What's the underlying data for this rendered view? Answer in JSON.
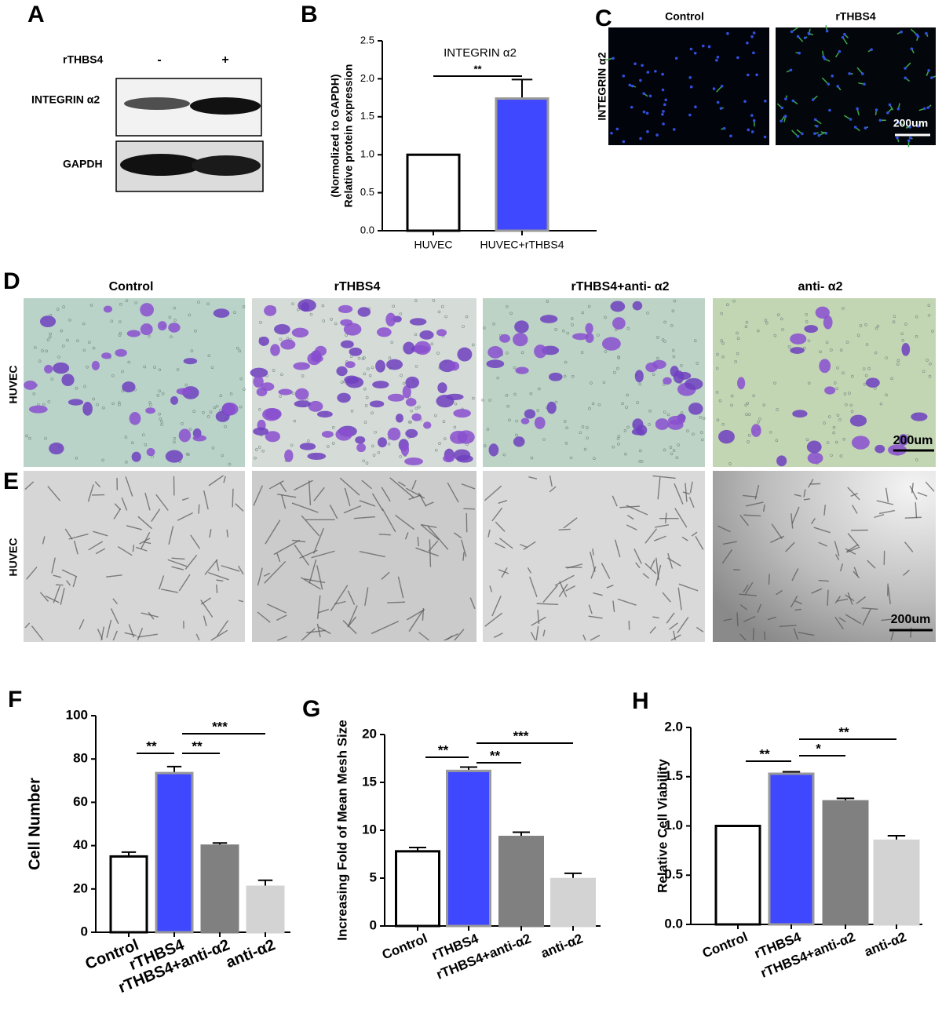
{
  "panel_labels": [
    "A",
    "B",
    "C",
    "D",
    "E",
    "F",
    "G",
    "H"
  ],
  "blot": {
    "treatment": "rTHBS4",
    "lanes": [
      "-",
      "+"
    ],
    "rows": [
      "INTEGRIN α2",
      "GAPDH"
    ]
  },
  "panel_c": {
    "columns": [
      "Control",
      "rTHBS4"
    ],
    "row": "INTEGRIN α2",
    "scale": "200um"
  },
  "panel_d": {
    "columns": [
      "Control",
      "rTHBS4",
      "rTHBS4+anti- α2",
      "anti- α2"
    ],
    "row": "HUVEC",
    "scale": "200um"
  },
  "panel_e": {
    "row": "HUVEC",
    "scale": "200um"
  },
  "chart_data": [
    {
      "type": "bar",
      "title": "INTEGRIN α2",
      "y_label": [
        "Relative protein expression",
        "(Normolized to GAPDH)"
      ],
      "categories": [
        "HUVEC",
        "HUVEC+rTHBS4"
      ],
      "values": [
        1.0,
        1.74
      ],
      "errors": [
        0,
        0.25
      ],
      "colors": [
        "#ffffff",
        "#3f48ff"
      ],
      "ylim": [
        0,
        2.5
      ],
      "yticks": [
        {
          "value": 0,
          "label": "0.0"
        },
        {
          "value": 0.5,
          "label": "0.5"
        },
        {
          "value": 1,
          "label": "1.0"
        },
        {
          "value": 1.5,
          "label": "1.5"
        },
        {
          "value": 2,
          "label": "2.0"
        },
        {
          "value": 2.5,
          "label": "2.5"
        }
      ],
      "significance": [
        {
          "between": [
            "HUVEC",
            "HUVEC+rTHBS4"
          ],
          "label": "**"
        }
      ]
    },
    {
      "type": "bar",
      "y_label": [
        "Cell Number"
      ],
      "categories": [
        "Control",
        "rTHBS4",
        "rTHBS4+anti-α2",
        "anti-α2"
      ],
      "values": [
        35,
        73.5,
        40,
        21
      ],
      "errors": [
        2,
        3,
        1.2,
        3
      ],
      "colors": [
        "#ffffff",
        "#3f48ff",
        "#808080",
        "#d3d3d3"
      ],
      "ylim": [
        0,
        100
      ],
      "yticks": [
        0,
        20,
        40,
        60,
        80,
        100
      ],
      "significance": [
        {
          "between": [
            "Control",
            "rTHBS4"
          ],
          "label": "**"
        },
        {
          "between": [
            "rTHBS4",
            "rTHBS4+anti-α2"
          ],
          "label": "**"
        },
        {
          "between": [
            "rTHBS4",
            "anti-α2"
          ],
          "label": "***"
        }
      ]
    },
    {
      "type": "bar",
      "y_label": [
        "Increasing Fold of Mean Mesh Size"
      ],
      "categories": [
        "Control",
        "rTHBS4",
        "rTHBS4+anti-α2",
        "anti-α2"
      ],
      "values": [
        7.8,
        16.2,
        9.3,
        4.9
      ],
      "errors": [
        0.4,
        0.4,
        0.5,
        0.6
      ],
      "colors": [
        "#ffffff",
        "#3f48ff",
        "#808080",
        "#d3d3d3"
      ],
      "ylim": [
        0,
        20
      ],
      "yticks": [
        0,
        5,
        10,
        15,
        20
      ],
      "significance": [
        {
          "between": [
            "Control",
            "rTHBS4"
          ],
          "label": "**"
        },
        {
          "between": [
            "rTHBS4",
            "rTHBS4+anti-α2"
          ],
          "label": "**"
        },
        {
          "between": [
            "rTHBS4",
            "anti-α2"
          ],
          "label": "***"
        }
      ]
    },
    {
      "type": "bar",
      "y_label": [
        "Relative Cell Viability"
      ],
      "categories": [
        "Control",
        "rTHBS4",
        "rTHBS4+anti-α2",
        "anti-α2"
      ],
      "values": [
        1.0,
        1.53,
        1.25,
        0.85
      ],
      "errors": [
        0,
        0.02,
        0.03,
        0.05
      ],
      "colors": [
        "#ffffff",
        "#3f48ff",
        "#808080",
        "#d3d3d3"
      ],
      "ylim": [
        0,
        2.0
      ],
      "yticks": [
        {
          "value": 0,
          "label": "0.0"
        },
        {
          "value": 0.5,
          "label": "0.5"
        },
        {
          "value": 1,
          "label": "1.0"
        },
        {
          "value": 1.5,
          "label": "1.5"
        },
        {
          "value": 2,
          "label": "2.0"
        }
      ],
      "significance": [
        {
          "between": [
            "Control",
            "rTHBS4"
          ],
          "label": "**"
        },
        {
          "between": [
            "rTHBS4",
            "rTHBS4+anti-α2"
          ],
          "label": "*"
        },
        {
          "between": [
            "rTHBS4",
            "anti-α2"
          ],
          "label": "**"
        }
      ]
    }
  ]
}
